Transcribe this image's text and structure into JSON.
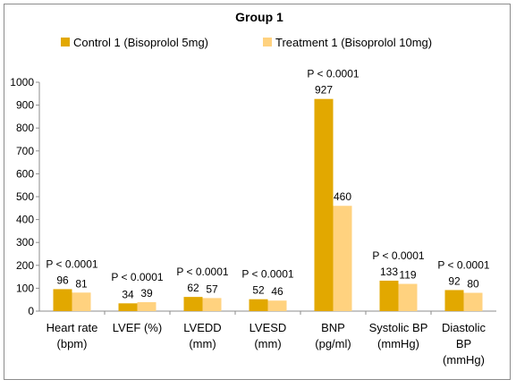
{
  "chart_data": {
    "type": "bar",
    "title": "Group 1",
    "categories": [
      [
        "Heart rate",
        "(bpm)"
      ],
      [
        "LVEF (%)"
      ],
      [
        "LVEDD",
        "(mm)"
      ],
      [
        "LVESD",
        "(mm)"
      ],
      [
        "BNP",
        "(pg/ml)"
      ],
      [
        "Systolic BP",
        "(mmHg)"
      ],
      [
        "Diastolic",
        "BP",
        "(mmHg)"
      ]
    ],
    "series": [
      {
        "name": "Control 1 (Bisoprolol 5mg)",
        "color": "#E2A800",
        "values": [
          96,
          34,
          62,
          52,
          927,
          133,
          92
        ]
      },
      {
        "name": "Treatment 1 (Bisoprolol 10mg)",
        "color": "#FFD27F",
        "values": [
          81,
          39,
          57,
          46,
          460,
          119,
          80
        ]
      }
    ],
    "annotations": [
      "P < 0.0001",
      "P < 0.0001",
      "P < 0.0001",
      "P < 0.0001",
      "P < 0.0001",
      "P < 0.0001",
      "P < 0.0001"
    ],
    "ylim": [
      0,
      1000
    ],
    "yticks": [
      0,
      100,
      200,
      300,
      400,
      500,
      600,
      700,
      800,
      900,
      1000
    ],
    "grid": false,
    "legend": "top"
  }
}
